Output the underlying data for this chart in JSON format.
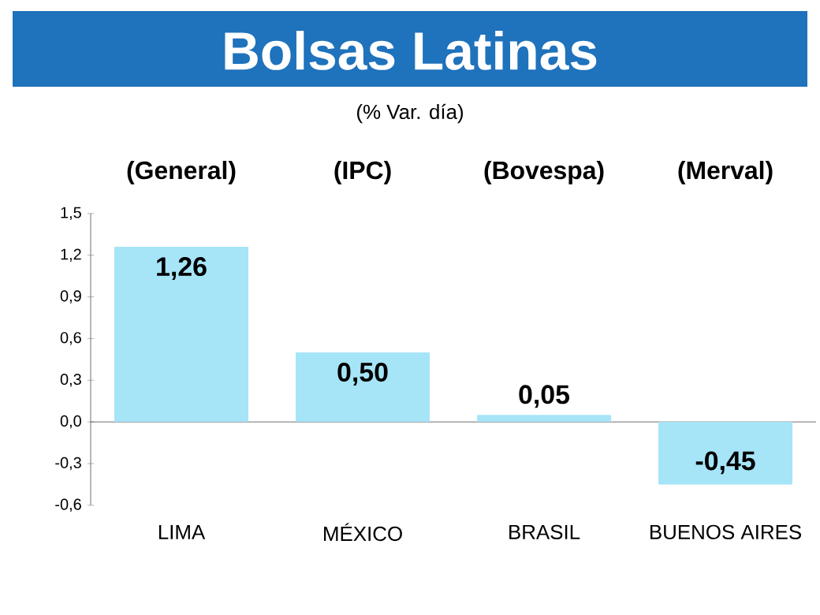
{
  "chart_data": {
    "type": "bar",
    "title": "Bolsas Latinas",
    "subtitle": "(% Var. día)",
    "categories": [
      "LIMA",
      "MÉXICO",
      "BRASIL",
      "BUENOS AIRES"
    ],
    "values": [
      1.26,
      0.5,
      0.05,
      -0.45
    ],
    "value_labels": [
      "1,26",
      "0,50",
      "0,05",
      "-0,45"
    ],
    "color": "#a6e4f8",
    "annotations": [
      "(General)",
      "(IPC)",
      "(Bovespa)",
      "(Merval)"
    ],
    "ylim": [
      -0.6,
      1.5
    ],
    "yticks": [
      {
        "value": -0.6,
        "label": "-0,6"
      },
      {
        "value": -0.3,
        "label": "-0,3"
      },
      {
        "value": 0,
        "label": "0,0"
      },
      {
        "value": 0.3,
        "label": "0,3"
      },
      {
        "value": 0.6,
        "label": "0,6"
      },
      {
        "value": 0.9,
        "label": "0,9"
      },
      {
        "value": 1.2,
        "label": "1,2"
      },
      {
        "value": 1.5,
        "label": "1,5"
      }
    ]
  }
}
